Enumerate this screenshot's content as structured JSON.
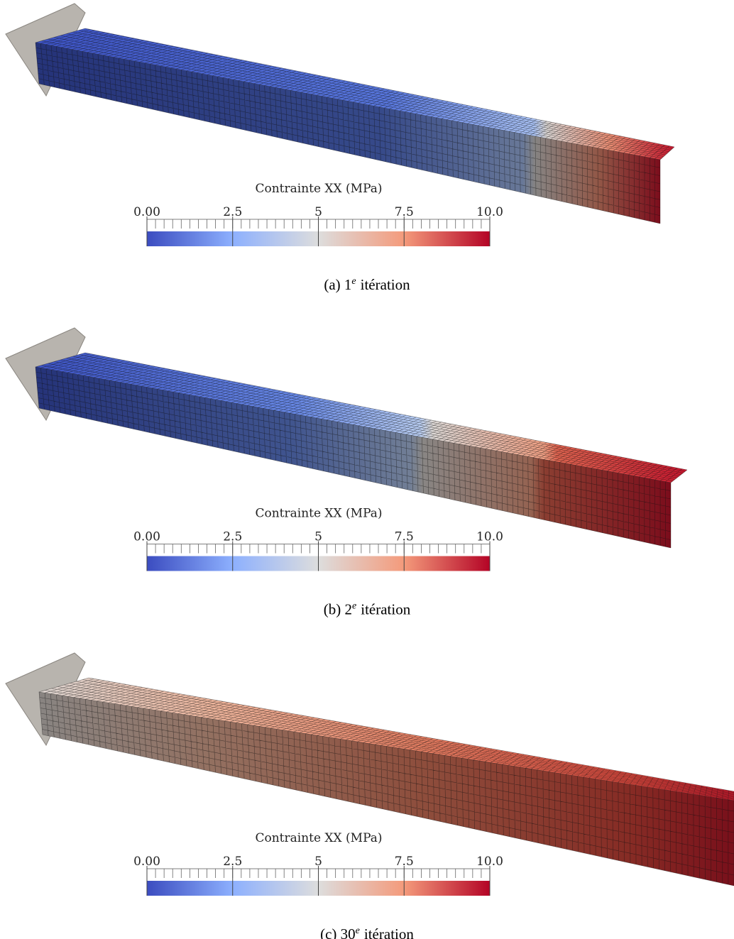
{
  "panels": [
    {
      "colorbar": {
        "title": "Contrainte XX (MPa)",
        "range": [
          0,
          10
        ],
        "ticks": [
          {
            "value": 0,
            "label": "0.00"
          },
          2.5,
          5,
          7.5,
          {
            "value": 10,
            "label": "10.0"
          }
        ]
      },
      "caption": {
        "label": "(a)",
        "number": "1",
        "sup": "e",
        "word": "itération"
      }
    },
    {
      "colorbar": {
        "title": "Contrainte XX (MPa)",
        "range": [
          0,
          10
        ],
        "ticks": [
          {
            "value": 0,
            "label": "0.00"
          },
          2.5,
          5,
          7.5,
          {
            "value": 10,
            "label": "10.0"
          }
        ]
      },
      "caption": {
        "label": "(b)",
        "number": "2",
        "sup": "e",
        "word": "itération"
      }
    },
    {
      "colorbar": {
        "title": "Contrainte XX (MPa)",
        "range": [
          0,
          10
        ],
        "ticks": [
          {
            "value": 0,
            "label": "0.00"
          },
          2.5,
          5,
          7.5,
          {
            "value": 10,
            "label": "10.0"
          }
        ]
      },
      "caption": {
        "label": "(c)",
        "number": "30",
        "sup": "e",
        "word": "itération"
      }
    }
  ]
}
